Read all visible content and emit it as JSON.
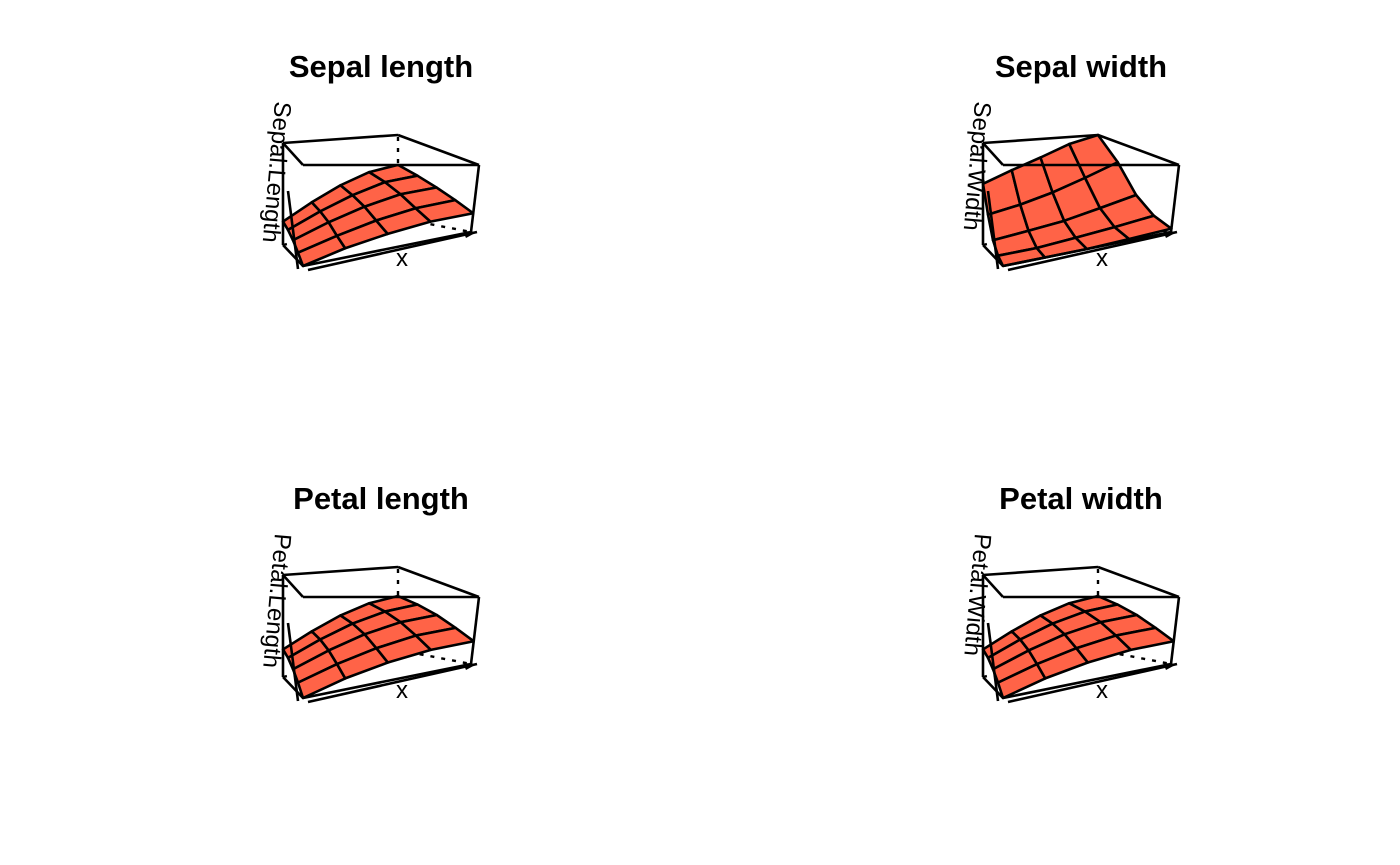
{
  "chart_data": [
    {
      "type": "surface",
      "title": "Sepal length",
      "xlabel": "x",
      "zlabel": "Sepal.Length",
      "surface_color": "#FF6347",
      "grid": [
        [
          0.0,
          0.1,
          0.18,
          0.25,
          0.28
        ],
        [
          0.08,
          0.18,
          0.28,
          0.36,
          0.4
        ],
        [
          0.15,
          0.27,
          0.38,
          0.47,
          0.5
        ],
        [
          0.2,
          0.33,
          0.45,
          0.55,
          0.58
        ],
        [
          0.23,
          0.37,
          0.5,
          0.6,
          0.64
        ]
      ]
    },
    {
      "type": "surface",
      "title": "Sepal width",
      "xlabel": "x",
      "zlabel": "Sepal.Width",
      "surface_color": "#FF6347",
      "grid": [
        [
          0.0,
          0.0,
          0.0,
          0.02,
          0.05
        ],
        [
          0.05,
          0.05,
          0.08,
          0.12,
          0.18
        ],
        [
          0.15,
          0.18,
          0.22,
          0.3,
          0.4
        ],
        [
          0.35,
          0.4,
          0.48,
          0.6,
          0.75
        ],
        [
          0.6,
          0.7,
          0.8,
          0.92,
          1.0
        ]
      ]
    },
    {
      "type": "surface",
      "title": "Petal length",
      "xlabel": "x",
      "zlabel": "Petal.Length",
      "surface_color": "#FF6347",
      "grid": [
        [
          0.0,
          0.12,
          0.22,
          0.3,
          0.34
        ],
        [
          0.1,
          0.22,
          0.33,
          0.42,
          0.46
        ],
        [
          0.18,
          0.31,
          0.43,
          0.52,
          0.56
        ],
        [
          0.24,
          0.37,
          0.49,
          0.58,
          0.62
        ],
        [
          0.27,
          0.4,
          0.52,
          0.61,
          0.65
        ]
      ]
    },
    {
      "type": "surface",
      "title": "Petal width",
      "xlabel": "x",
      "zlabel": "Petal.Width",
      "surface_color": "#FF6347",
      "grid": [
        [
          0.0,
          0.12,
          0.22,
          0.3,
          0.34
        ],
        [
          0.1,
          0.22,
          0.33,
          0.42,
          0.46
        ],
        [
          0.18,
          0.31,
          0.43,
          0.52,
          0.56
        ],
        [
          0.24,
          0.37,
          0.49,
          0.58,
          0.62
        ],
        [
          0.27,
          0.4,
          0.52,
          0.61,
          0.65
        ]
      ]
    }
  ]
}
